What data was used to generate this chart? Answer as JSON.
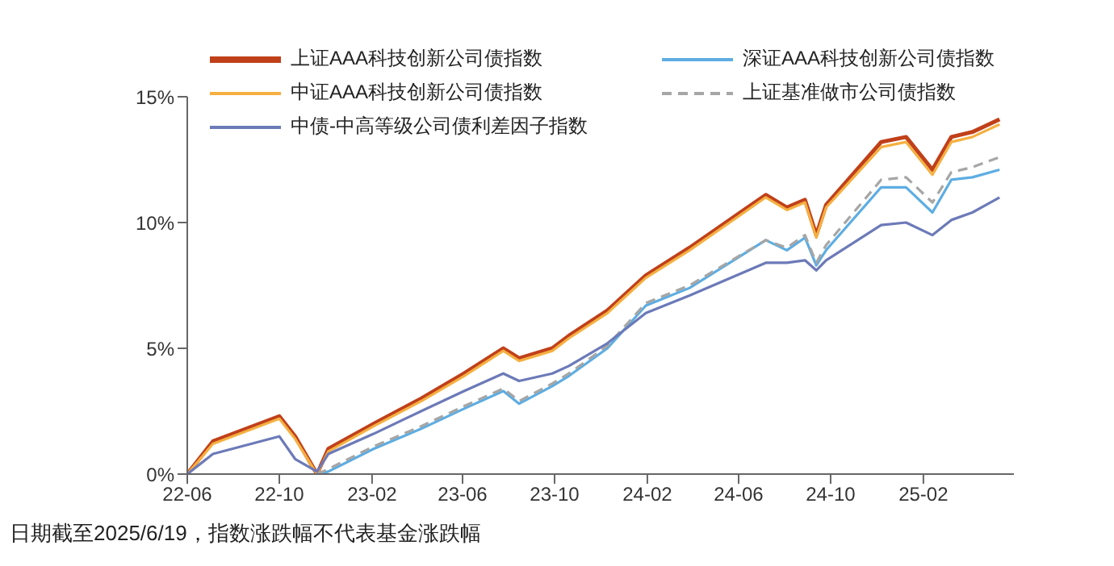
{
  "chart_data": {
    "type": "line",
    "x": [
      "2022-06-01",
      "2022-07-05",
      "2022-10-01",
      "2022-10-22",
      "2022-11-20",
      "2022-12-05",
      "2023-02-03",
      "2023-04-07",
      "2023-06-03",
      "2023-07-25",
      "2023-08-15",
      "2023-09-28",
      "2023-10-20",
      "2023-12-10",
      "2024-01-30",
      "2024-03-28",
      "2024-07-07",
      "2024-08-04",
      "2024-08-28",
      "2024-09-12",
      "2024-09-25",
      "2024-12-07",
      "2025-01-09",
      "2025-02-13",
      "2025-03-10",
      "2025-04-07",
      "2025-05-13"
    ],
    "series": [
      {
        "name": "上证AAA科技创新公司债指数",
        "color": "#c0401a",
        "values": [
          0,
          1.3,
          2.3,
          1.5,
          0.0,
          1.0,
          2.0,
          3.0,
          4.0,
          5.0,
          4.6,
          5.0,
          5.5,
          6.5,
          7.9,
          9.0,
          11.1,
          10.6,
          10.9,
          9.5,
          10.7,
          13.2,
          13.4,
          12.1,
          13.4,
          13.6,
          14.1
        ]
      },
      {
        "name": "深证AAA科技创新公司债指数",
        "color": "#5dade2",
        "values": [
          null,
          null,
          null,
          null,
          0.0,
          0.1,
          1.0,
          1.8,
          2.6,
          3.3,
          2.8,
          3.5,
          3.9,
          5.0,
          6.7,
          7.4,
          9.3,
          8.9,
          9.4,
          8.3,
          8.9,
          11.4,
          11.4,
          10.4,
          11.7,
          11.8,
          12.1
        ]
      },
      {
        "name": "中证AAA科技创新公司债指数",
        "color": "#f5b041",
        "values": [
          0,
          1.2,
          2.2,
          1.4,
          0.0,
          0.9,
          1.9,
          2.9,
          3.9,
          4.9,
          4.5,
          4.9,
          5.4,
          6.4,
          7.8,
          8.9,
          11.0,
          10.5,
          10.8,
          9.4,
          10.6,
          13.0,
          13.2,
          11.9,
          13.2,
          13.4,
          13.9
        ]
      },
      {
        "name": "上证基准做市公司债指数",
        "color": "#a6a6a6",
        "line_style": "dashed",
        "values": [
          null,
          null,
          null,
          null,
          0.0,
          0.2,
          1.1,
          1.9,
          2.7,
          3.4,
          2.9,
          3.6,
          4.0,
          5.1,
          6.8,
          7.5,
          9.3,
          9.0,
          9.5,
          8.4,
          9.1,
          11.7,
          11.8,
          10.8,
          12.0,
          12.2,
          12.6
        ]
      },
      {
        "name": "中债-中高等级公司债利差因子指数",
        "color": "#6c7ab8",
        "values": [
          0,
          0.8,
          1.5,
          0.6,
          0.1,
          0.8,
          1.6,
          2.5,
          3.3,
          4.0,
          3.7,
          4.0,
          4.3,
          5.2,
          6.4,
          7.1,
          8.4,
          8.4,
          8.5,
          8.1,
          8.5,
          9.9,
          10.0,
          9.5,
          10.1,
          10.4,
          11.0
        ]
      }
    ],
    "xlim": [
      "2022-06-01",
      "2025-06-01"
    ],
    "xticks": [
      {
        "value": "2022-06-01",
        "label": "22-06"
      },
      {
        "value": "2022-10-01",
        "label": "22-10"
      },
      {
        "value": "2023-02-01",
        "label": "23-02"
      },
      {
        "value": "2023-06-01",
        "label": "23-06"
      },
      {
        "value": "2023-10-01",
        "label": "23-10"
      },
      {
        "value": "2024-02-01",
        "label": "24-02"
      },
      {
        "value": "2024-06-01",
        "label": "24-06"
      },
      {
        "value": "2024-10-01",
        "label": "24-10"
      },
      {
        "value": "2025-02-01",
        "label": "25-02"
      }
    ],
    "ylim": [
      0,
      15
    ],
    "yticks": [
      {
        "value": 0,
        "label": "0%"
      },
      {
        "value": 5,
        "label": "5%"
      },
      {
        "value": 10,
        "label": "10%"
      },
      {
        "value": 15,
        "label": "15%"
      }
    ],
    "grid": false,
    "legend": "top",
    "line_style": "solid",
    "marker": "none",
    "annotations": [
      "日期截至2025/6/19，指数涨跌幅不代表基金涨跌幅"
    ]
  }
}
